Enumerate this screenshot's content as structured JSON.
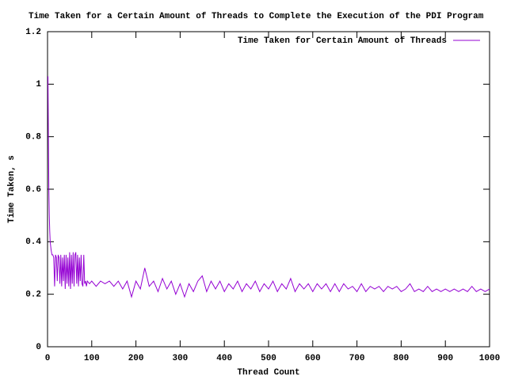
{
  "chart_data": {
    "type": "line",
    "title": "Time Taken for a Certain Amount of Threads to Complete the Execution of the PDI Program",
    "x_label": "Thread Count",
    "y_label": "Time Taken, s",
    "legend": "top-right",
    "grid": false,
    "xlim": [
      0,
      1000
    ],
    "xticks": [
      0,
      100,
      200,
      300,
      400,
      500,
      600,
      700,
      800,
      900,
      1000
    ],
    "ylim": [
      0,
      1.2
    ],
    "yticks": [
      0,
      0.2,
      0.4,
      0.6,
      0.8,
      1,
      1.2
    ],
    "x": [
      1,
      2,
      3,
      4,
      5,
      6,
      8,
      10,
      12,
      14,
      16,
      18,
      20,
      22,
      24,
      26,
      28,
      30,
      32,
      34,
      36,
      38,
      40,
      42,
      44,
      46,
      48,
      50,
      52,
      54,
      56,
      58,
      60,
      62,
      64,
      66,
      68,
      70,
      72,
      74,
      76,
      78,
      80,
      82,
      84,
      86,
      88,
      90,
      95,
      100,
      110,
      120,
      130,
      140,
      150,
      160,
      170,
      180,
      190,
      200,
      210,
      220,
      230,
      240,
      250,
      260,
      270,
      280,
      290,
      300,
      310,
      320,
      330,
      340,
      350,
      360,
      370,
      380,
      390,
      400,
      410,
      420,
      430,
      440,
      450,
      460,
      470,
      480,
      490,
      500,
      510,
      520,
      530,
      540,
      550,
      560,
      570,
      580,
      590,
      600,
      610,
      620,
      630,
      640,
      650,
      660,
      670,
      680,
      690,
      700,
      710,
      720,
      730,
      740,
      750,
      760,
      770,
      780,
      790,
      800,
      810,
      820,
      830,
      840,
      850,
      860,
      870,
      880,
      890,
      900,
      910,
      920,
      930,
      940,
      950,
      960,
      970,
      980,
      990,
      1000
    ],
    "series": [
      {
        "name": "Time Taken for Certain Amount of Threads",
        "color": "#9400d3",
        "values": [
          1.03,
          0.8,
          0.6,
          0.5,
          0.44,
          0.4,
          0.37,
          0.35,
          0.35,
          0.34,
          0.23,
          0.35,
          0.34,
          0.25,
          0.35,
          0.34,
          0.24,
          0.35,
          0.23,
          0.34,
          0.25,
          0.35,
          0.22,
          0.35,
          0.24,
          0.34,
          0.23,
          0.36,
          0.22,
          0.35,
          0.24,
          0.36,
          0.23,
          0.35,
          0.36,
          0.24,
          0.35,
          0.23,
          0.34,
          0.25,
          0.35,
          0.24,
          0.23,
          0.35,
          0.24,
          0.25,
          0.23,
          0.25,
          0.24,
          0.25,
          0.23,
          0.25,
          0.24,
          0.25,
          0.23,
          0.25,
          0.22,
          0.25,
          0.19,
          0.25,
          0.22,
          0.3,
          0.23,
          0.25,
          0.21,
          0.26,
          0.22,
          0.25,
          0.2,
          0.24,
          0.19,
          0.24,
          0.21,
          0.25,
          0.27,
          0.21,
          0.25,
          0.22,
          0.25,
          0.21,
          0.24,
          0.22,
          0.25,
          0.21,
          0.24,
          0.22,
          0.25,
          0.21,
          0.24,
          0.22,
          0.25,
          0.21,
          0.24,
          0.22,
          0.26,
          0.21,
          0.24,
          0.22,
          0.24,
          0.21,
          0.24,
          0.22,
          0.24,
          0.21,
          0.24,
          0.21,
          0.24,
          0.22,
          0.23,
          0.21,
          0.24,
          0.21,
          0.23,
          0.22,
          0.23,
          0.21,
          0.23,
          0.22,
          0.23,
          0.21,
          0.22,
          0.24,
          0.21,
          0.22,
          0.21,
          0.23,
          0.21,
          0.22,
          0.21,
          0.22,
          0.21,
          0.22,
          0.21,
          0.22,
          0.21,
          0.23,
          0.21,
          0.22,
          0.21,
          0.22
        ]
      }
    ]
  }
}
